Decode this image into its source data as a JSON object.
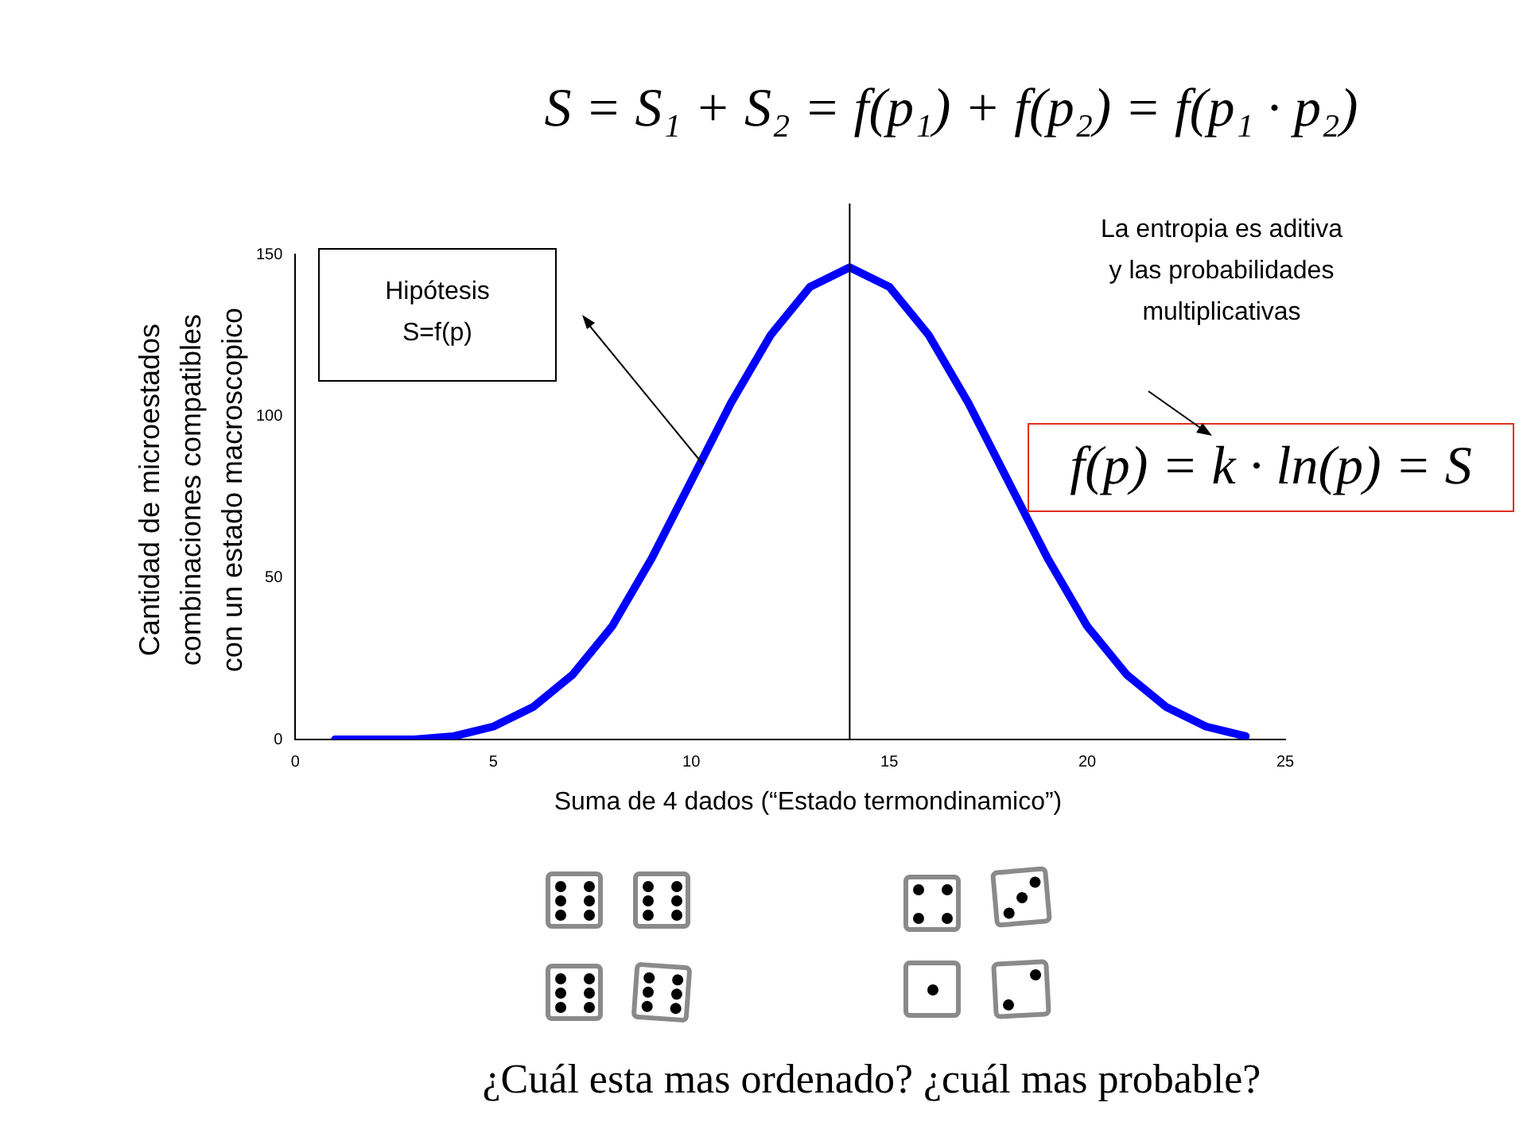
{
  "chart_data": {
    "type": "line",
    "xlabel": "Suma de 4 dados (“Estado termondinamico”)",
    "ylabel": "Cantidad de microestados\ncombinaciones compatibles\ncon un estado macroscopico",
    "x": [
      1,
      2,
      3,
      4,
      5,
      6,
      7,
      8,
      9,
      10,
      11,
      12,
      13,
      14,
      15,
      16,
      17,
      18,
      19,
      20,
      21,
      22,
      23,
      24
    ],
    "series": [
      {
        "color": "#0000ff",
        "values": [
          0,
          0,
          0,
          1,
          4,
          10,
          20,
          35,
          56,
          80,
          104,
          125,
          140,
          146,
          140,
          125,
          104,
          80,
          56,
          35,
          20,
          10,
          4,
          1
        ]
      }
    ],
    "xlim": [
      0,
      25
    ],
    "xticks": [
      0,
      5,
      10,
      15,
      20,
      25
    ],
    "ylim": [
      0,
      150
    ],
    "yticks": [
      0,
      50,
      100,
      150
    ],
    "grid": false,
    "legend": false,
    "marker": "none",
    "line_style": "solid",
    "ref_lines": [
      {
        "axis": "x",
        "value": 14,
        "color": "#000000"
      }
    ],
    "annotations": [
      "S = S₁ + S₂ = f(p₁) + f(p₂) = f(p₁ · p₂)",
      "Hipótesis\nS=f(p)",
      "La entropia es aditiva\ny las probabilidades\nmultiplicativas",
      "f(p) = k · ln(p) = S",
      "¿Cuál esta mas ordenado? ¿cuál mas probable?"
    ]
  }
}
